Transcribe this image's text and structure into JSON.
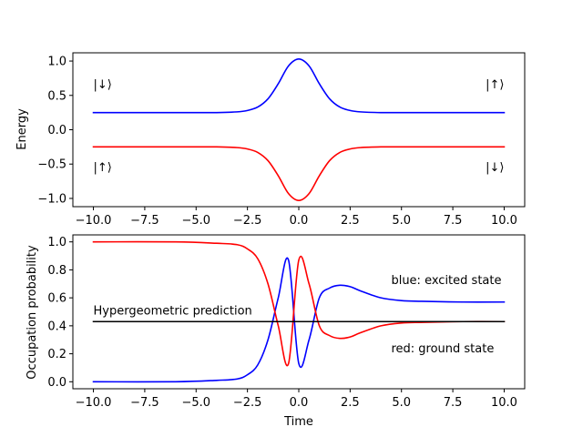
{
  "chart_data": [
    {
      "type": "line",
      "title": "",
      "xlabel": "",
      "ylabel": "Energy",
      "xlim": [
        -11,
        11
      ],
      "ylim": [
        -1.12,
        1.12
      ],
      "xticks": [
        "−10.0",
        "−7.5",
        "−5.0",
        "−2.5",
        "0.0",
        "2.5",
        "5.0",
        "7.5",
        "10.0"
      ],
      "yticks": [
        "−1.0",
        "−0.5",
        "0.0",
        "0.5",
        "1.0"
      ],
      "xtick_values": [
        -10,
        -7.5,
        -5,
        -2.5,
        0,
        2.5,
        5,
        7.5,
        10
      ],
      "ytick_values": [
        -1,
        -0.5,
        0,
        0.5,
        1
      ],
      "series": [
        {
          "color": "#0000ff",
          "x": [
            -10,
            -8,
            -6,
            -5,
            -4,
            -3,
            -2.5,
            -2,
            -1.5,
            -1,
            -0.5,
            0,
            0.5,
            1,
            1.5,
            2,
            2.5,
            3,
            4,
            5,
            6,
            8,
            10
          ],
          "y": [
            0.25,
            0.25,
            0.25,
            0.25,
            0.25,
            0.26,
            0.28,
            0.33,
            0.45,
            0.67,
            0.93,
            1.03,
            0.93,
            0.67,
            0.45,
            0.33,
            0.28,
            0.26,
            0.25,
            0.25,
            0.25,
            0.25,
            0.25
          ]
        },
        {
          "color": "#ff0000",
          "x": [
            -10,
            -8,
            -6,
            -5,
            -4,
            -3,
            -2.5,
            -2,
            -1.5,
            -1,
            -0.5,
            0,
            0.5,
            1,
            1.5,
            2,
            2.5,
            3,
            4,
            5,
            6,
            8,
            10
          ],
          "y": [
            -0.25,
            -0.25,
            -0.25,
            -0.25,
            -0.25,
            -0.26,
            -0.28,
            -0.33,
            -0.45,
            -0.67,
            -0.93,
            -1.03,
            -0.93,
            -0.67,
            -0.45,
            -0.33,
            -0.28,
            -0.26,
            -0.25,
            -0.25,
            -0.25,
            -0.25,
            -0.25
          ]
        }
      ],
      "annotations": {
        "top_left": "|↓⟩",
        "top_right": "|↑⟩",
        "bottom_left": "|↑⟩",
        "bottom_right": "|↓⟩"
      },
      "annotation_values": {
        "top_left": [
          -10,
          0.6
        ],
        "top_right": [
          9.1,
          0.6
        ],
        "bottom_left": [
          -10,
          -0.6
        ],
        "bottom_right": [
          9.1,
          -0.6
        ]
      }
    },
    {
      "type": "line",
      "title": "",
      "xlabel": "Time",
      "ylabel": "Occupation probability",
      "xlim": [
        -11,
        11
      ],
      "ylim": [
        -0.05,
        1.05
      ],
      "xticks": [
        "−10.0",
        "−7.5",
        "−5.0",
        "−2.5",
        "0.0",
        "2.5",
        "5.0",
        "7.5",
        "10.0"
      ],
      "yticks": [
        "0.0",
        "0.2",
        "0.4",
        "0.6",
        "0.8",
        "1.0"
      ],
      "xtick_values": [
        -10,
        -7.5,
        -5,
        -2.5,
        0,
        2.5,
        5,
        7.5,
        10
      ],
      "ytick_values": [
        0,
        0.2,
        0.4,
        0.6,
        0.8,
        1.0
      ],
      "series": [
        {
          "color": "#0000ff",
          "x": [
            -10,
            -6,
            -4,
            -3,
            -2.5,
            -2,
            -1.5,
            -1,
            -0.5,
            0,
            0.5,
            1,
            1.5,
            2,
            2.5,
            3,
            4,
            5,
            6,
            8,
            10
          ],
          "y": [
            0.0,
            0.0,
            0.01,
            0.02,
            0.05,
            0.12,
            0.3,
            0.6,
            0.87,
            0.13,
            0.3,
            0.6,
            0.67,
            0.69,
            0.68,
            0.65,
            0.6,
            0.58,
            0.575,
            0.57,
            0.57
          ]
        },
        {
          "color": "#ff0000",
          "x": [
            -10,
            -6,
            -4,
            -3,
            -2.5,
            -2,
            -1.5,
            -1,
            -0.5,
            0,
            0.5,
            1,
            1.5,
            2,
            2.5,
            3,
            4,
            5,
            6,
            8,
            10
          ],
          "y": [
            1.0,
            1.0,
            0.99,
            0.98,
            0.95,
            0.88,
            0.7,
            0.4,
            0.13,
            0.87,
            0.7,
            0.4,
            0.33,
            0.31,
            0.32,
            0.35,
            0.4,
            0.42,
            0.425,
            0.43,
            0.43
          ]
        },
        {
          "color": "#000000",
          "x": [
            -10,
            10
          ],
          "y": [
            0.43,
            0.43
          ]
        }
      ],
      "annotations": {
        "hypergeometric": "Hypergeometric prediction",
        "excited": "blue: excited state",
        "ground": "red: ground state"
      },
      "annotation_values": {
        "hypergeometric": [
          -10,
          0.48
        ],
        "excited": [
          4.5,
          0.7
        ],
        "ground": [
          4.5,
          0.21
        ]
      }
    }
  ]
}
